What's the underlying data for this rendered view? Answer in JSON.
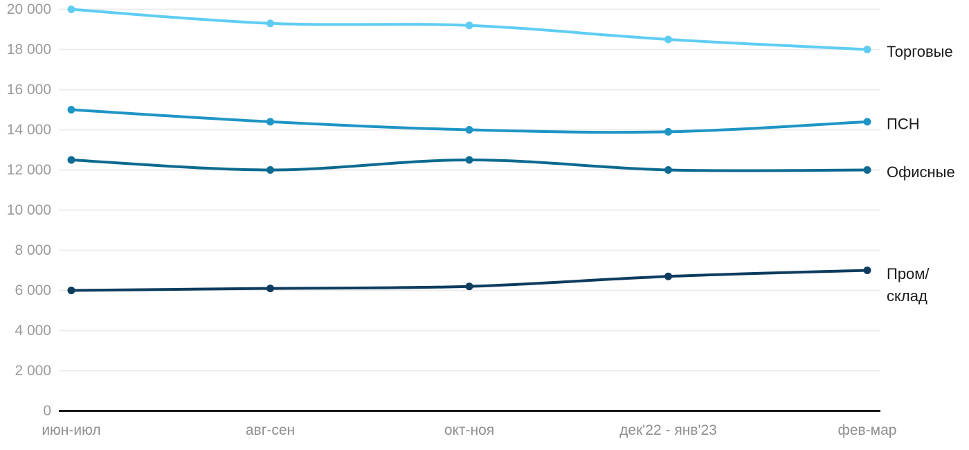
{
  "chart_data": {
    "type": "line",
    "title": "",
    "xlabel": "",
    "ylabel": "",
    "categories": [
      "июн-июл",
      "авг-сен",
      "окт-ноя",
      "дек'22 - янв'23",
      "фев-мар"
    ],
    "series": [
      {
        "name": "Торговые",
        "label_lines": [
          "Торговые"
        ],
        "color": "#5FCDF3",
        "values": [
          20000,
          19300,
          19200,
          18500,
          18000
        ]
      },
      {
        "name": "ПСН",
        "label_lines": [
          "ПСН"
        ],
        "color": "#1E95C5",
        "values": [
          15000,
          14400,
          14000,
          13900,
          14400
        ]
      },
      {
        "name": "Офисные",
        "label_lines": [
          "Офисные"
        ],
        "color": "#0D6A90",
        "values": [
          12500,
          12000,
          12500,
          12000,
          12000
        ]
      },
      {
        "name": "Пром/склад",
        "label_lines": [
          "Пром/",
          "склад"
        ],
        "color": "#0D3C5E",
        "values": [
          6000,
          6100,
          6200,
          6700,
          7000
        ]
      }
    ],
    "y_ticks": [
      {
        "value": 0,
        "label": "0"
      },
      {
        "value": 2000,
        "label": "2 000"
      },
      {
        "value": 4000,
        "label": "4 000"
      },
      {
        "value": 6000,
        "label": "6 000"
      },
      {
        "value": 8000,
        "label": "8 000"
      },
      {
        "value": 10000,
        "label": "10 000"
      },
      {
        "value": 12000,
        "label": "12 000"
      },
      {
        "value": 14000,
        "label": "14 000"
      },
      {
        "value": 16000,
        "label": "16 000"
      },
      {
        "value": 18000,
        "label": "18 000"
      },
      {
        "value": 20000,
        "label": "20 000"
      }
    ],
    "ylim": [
      0,
      20000
    ],
    "grid": true,
    "legend_position": "right-of-line-end",
    "colors": {
      "background": "#FFFFFF",
      "gridline": "#ECECEC",
      "axis_line": "#1A1A1A",
      "y_tick_label": "#9A9A9A",
      "x_tick_label": "#8F8F8F",
      "series_label": "#1A1A1A"
    }
  }
}
